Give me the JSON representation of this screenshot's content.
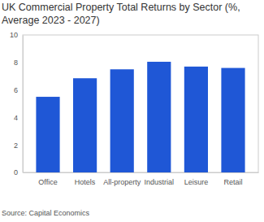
{
  "chart_data": {
    "type": "bar",
    "title": "UK Commercial Property Total Returns by Sector (%, Average 2023 - 2027)",
    "source": "Source: Capital Economics",
    "categories": [
      "Office",
      "Hotels",
      "All-property",
      "Industrial",
      "Leisure",
      "Retail"
    ],
    "values": [
      5.5,
      6.85,
      7.5,
      8.05,
      7.7,
      7.6
    ],
    "color": "#1f57d6",
    "ylim": [
      0,
      10
    ],
    "yticks": [
      0,
      2,
      4,
      6,
      8,
      10
    ],
    "grid": false
  }
}
